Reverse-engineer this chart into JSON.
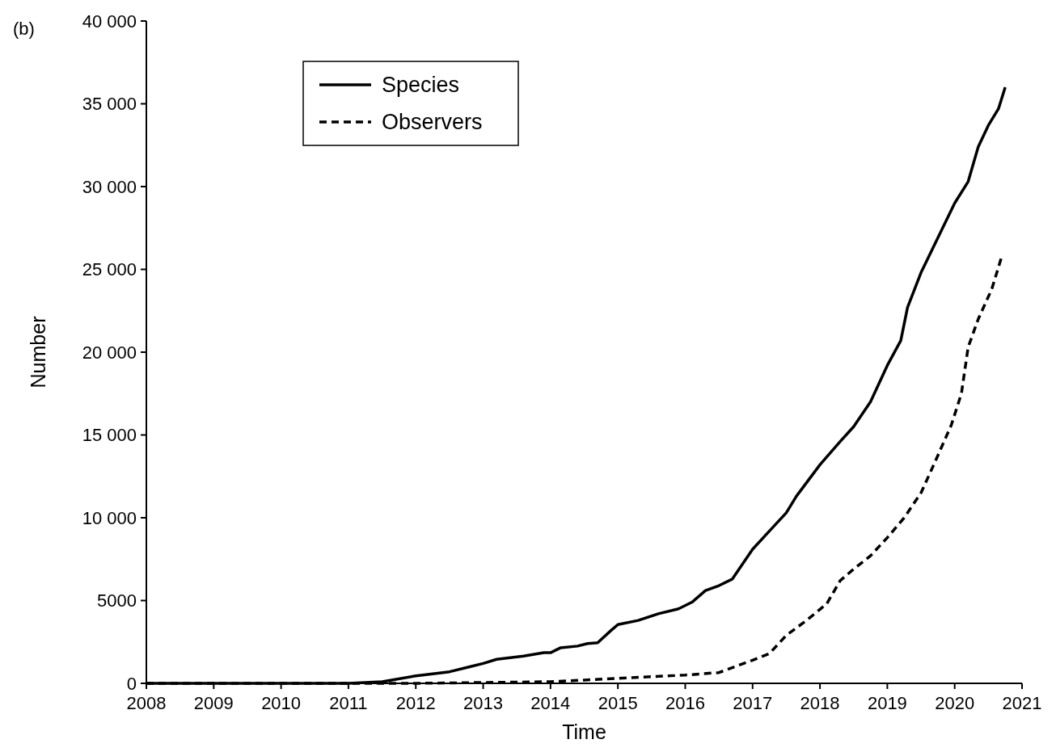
{
  "chart_data": {
    "type": "line",
    "xlabel": "Time",
    "ylabel": "Number",
    "annotations": [
      "(b)"
    ],
    "x": [
      2008,
      2011,
      2011.5,
      2012,
      2012.5,
      2012.8,
      2013,
      2013.2,
      2013.6,
      2013.9,
      2014,
      2014.15,
      2014.4,
      2014.55,
      2014.7,
      2014.9,
      2015,
      2015.3,
      2015.6,
      2015.9,
      2016.1,
      2016.3,
      2016.5,
      2016.7,
      2017,
      2017.25,
      2017.5,
      2017.65,
      2018,
      2018.3,
      2018.5,
      2018.75,
      2019,
      2019.2,
      2019.3,
      2019.5,
      2019.75,
      2020,
      2020.2,
      2020.35,
      2020.5,
      2020.65,
      2020.75
    ],
    "series": [
      {
        "name": "Species",
        "color": "#000000",
        "line_style": "solid",
        "values": [
          0,
          0,
          100,
          450,
          700,
          1000,
          1200,
          1450,
          1650,
          1850,
          1850,
          2150,
          2250,
          2400,
          2450,
          3200,
          3550,
          3800,
          4200,
          4500,
          4900,
          5600,
          5900,
          6300,
          8100,
          9200,
          10300,
          11300,
          13200,
          14600,
          15500,
          17000,
          19200,
          20700,
          22700,
          24800,
          26900,
          29000,
          30300,
          32400,
          33700,
          34700,
          36000
        ]
      },
      {
        "name": "Observers",
        "color": "#000000",
        "line_style": "dashed",
        "x": [
          2008,
          2012,
          2013,
          2014,
          2014.5,
          2015,
          2015.5,
          2016,
          2016.5,
          2016.8,
          2017,
          2017.25,
          2017.5,
          2017.8,
          2018.1,
          2018.3,
          2018.5,
          2018.75,
          2019,
          2019.25,
          2019.5,
          2019.7,
          2019.95,
          2020.1,
          2020.2,
          2020.35,
          2020.55,
          2020.7
        ],
        "values": [
          0,
          0,
          50,
          100,
          200,
          300,
          400,
          500,
          650,
          1100,
          1400,
          1800,
          2900,
          3800,
          4800,
          6200,
          6900,
          7700,
          8800,
          10000,
          11500,
          13300,
          15600,
          17500,
          20300,
          22000,
          23800,
          25800
        ]
      }
    ],
    "xlim": [
      2008,
      2021
    ],
    "xticks": [
      2008,
      2009,
      2010,
      2011,
      2012,
      2013,
      2014,
      2015,
      2016,
      2017,
      2018,
      2019,
      2020,
      2021
    ],
    "ylim": [
      0,
      40000
    ],
    "yticks": [
      0,
      5000,
      {
        "value": 10000,
        "label": "10 000"
      },
      {
        "value": 15000,
        "label": "15 000"
      },
      {
        "value": 20000,
        "label": "20 000"
      },
      {
        "value": 25000,
        "label": "25 000"
      },
      {
        "value": 30000,
        "label": "30 000"
      },
      {
        "value": 35000,
        "label": "35 000"
      },
      {
        "value": 40000,
        "label": "40 000"
      }
    ],
    "grid": false,
    "legend": "top left"
  }
}
